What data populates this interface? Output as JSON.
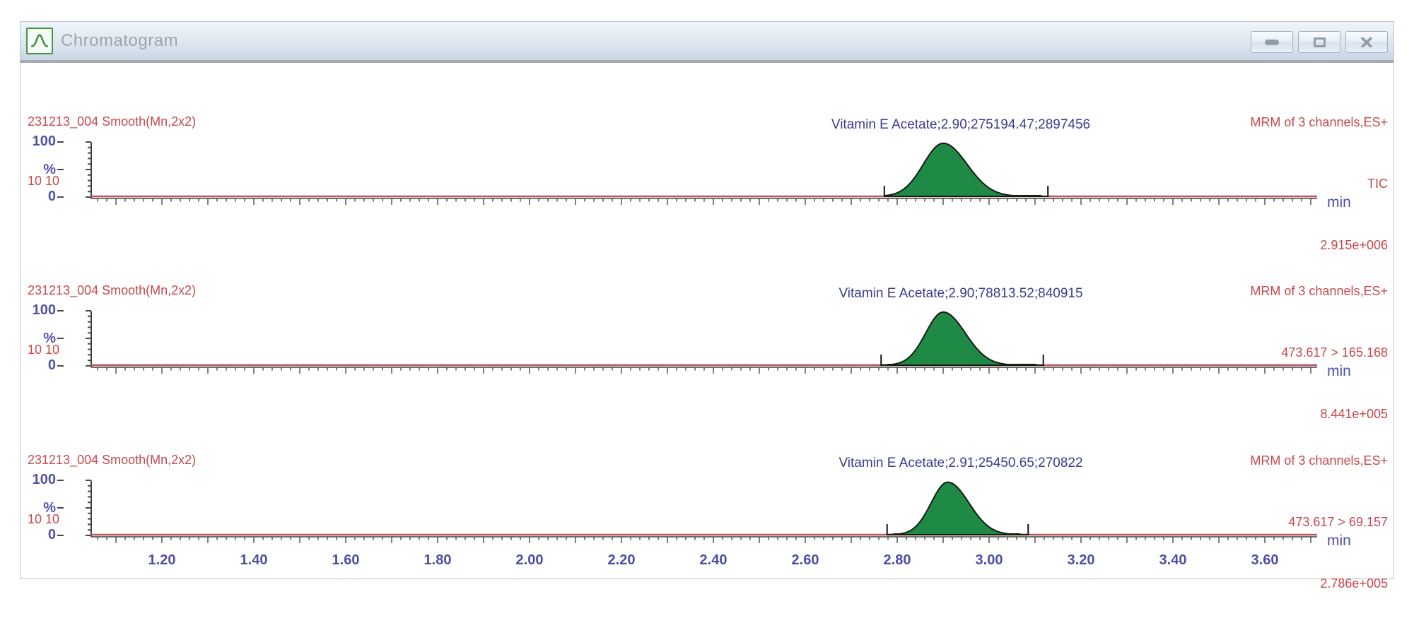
{
  "window": {
    "title": "Chromatogram"
  },
  "colors": {
    "header_red": "#c6494c",
    "label_blue": "#4d4da6",
    "peak_label_blue": "#3b3b92",
    "trace_red": "#b4585a",
    "peak_fill": "#1e8a45",
    "peak_outline": "#161c12",
    "axis": "#3f3f3f",
    "titlebar_text": "#9da5ad",
    "icon_green": "#3d8f3d"
  },
  "y_axis": {
    "top": "100",
    "unit": "%",
    "bottom": "0"
  },
  "x_axis": {
    "unit_label": "min",
    "tick_labels": [
      "1.20",
      "1.40",
      "1.60",
      "1.80",
      "2.00",
      "2.20",
      "2.40",
      "2.60",
      "2.80",
      "3.00",
      "3.20",
      "3.40",
      "3.60"
    ]
  },
  "panels": [
    {
      "left_line1": "231213_004 Smooth(Mn,2x2)",
      "left_line2": "10 10",
      "acq_mode": "MRM of 3 channels,ES+",
      "channel": "TIC",
      "intensity_scale": "2.915e+006",
      "peak_label": "Vitamin E Acetate;2.90;275194.47;2897456"
    },
    {
      "left_line1": "231213_004 Smooth(Mn,2x2)",
      "left_line2": "10 10",
      "acq_mode": "MRM of 3 channels,ES+",
      "channel": "473.617 > 165.168",
      "intensity_scale": "8.441e+005",
      "peak_label": "Vitamin E Acetate;2.90;78813.52;840915"
    },
    {
      "left_line1": "231213_004 Smooth(Mn,2x2)",
      "left_line2": "10 10",
      "acq_mode": "MRM of 3 channels,ES+",
      "channel": "473.617 > 69.157",
      "intensity_scale": "2.786e+005",
      "peak_label": "Vitamin E Acetate;2.91;25450.65;270822"
    }
  ],
  "chart_data": {
    "type": "area",
    "title": "Chromatogram",
    "xlabel": "min",
    "ylabel": "%",
    "x_range": [
      1.05,
      3.71
    ],
    "y_range": [
      0,
      100
    ],
    "x_tick_step_minor": 0.02,
    "x_tick_step_labeled": 0.2,
    "grid": false,
    "series": [
      {
        "name": "TIC",
        "compound": "Vitamin E Acetate",
        "peak_rt": 2.9,
        "peak_area": 275194.47,
        "peak_height": 2897456,
        "scale_intensity": "2.915e+006",
        "integration_window": [
          2.772,
          3.128
        ],
        "apex_pct": 97,
        "sigma_left": 0.043,
        "sigma_right": 0.052
      },
      {
        "name": "473.617 > 165.168",
        "compound": "Vitamin E Acetate",
        "peak_rt": 2.9,
        "peak_area": 78813.52,
        "peak_height": 840915,
        "scale_intensity": "8.441e+005",
        "integration_window": [
          2.765,
          3.118
        ],
        "apex_pct": 97,
        "sigma_left": 0.038,
        "sigma_right": 0.048
      },
      {
        "name": "473.617 > 69.157",
        "compound": "Vitamin E Acetate",
        "peak_rt": 2.91,
        "peak_area": 25450.65,
        "peak_height": 270822,
        "scale_intensity": "2.786e+005",
        "integration_window": [
          2.778,
          3.085
        ],
        "apex_pct": 96,
        "sigma_left": 0.036,
        "sigma_right": 0.046
      }
    ]
  }
}
